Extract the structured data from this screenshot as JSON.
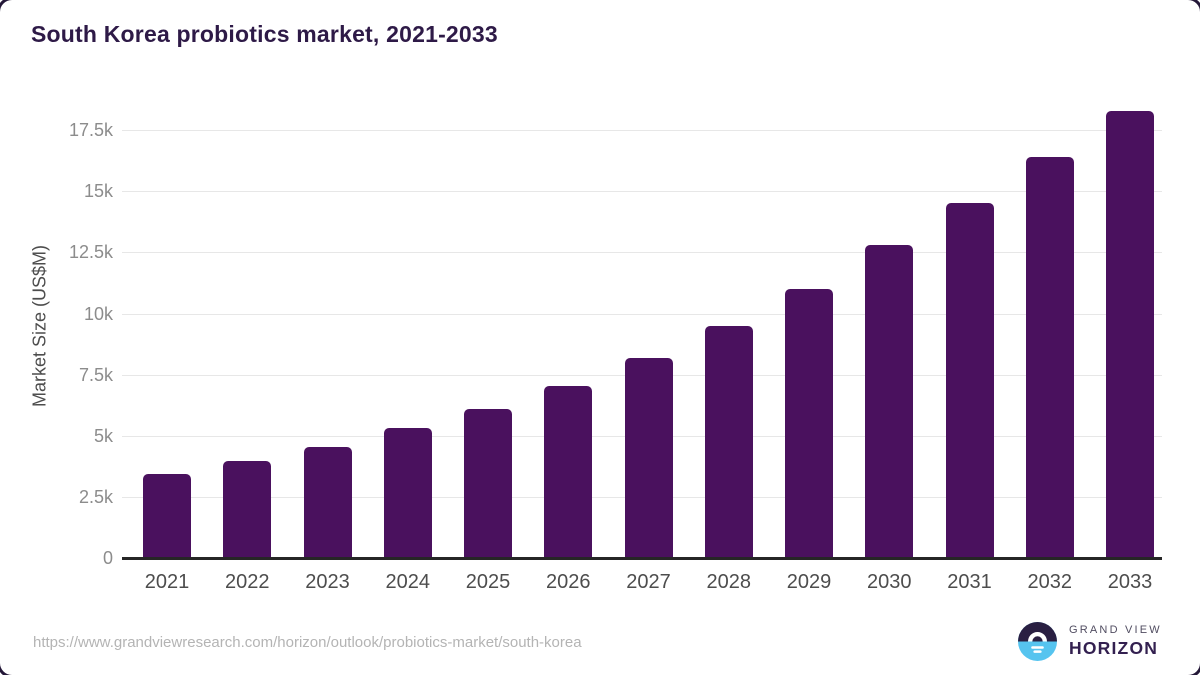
{
  "title": "South Korea probiotics market, 2021-2033",
  "chart_data": {
    "type": "bar",
    "title": "South Korea probiotics market, 2021-2033",
    "categories": [
      "2021",
      "2022",
      "2023",
      "2024",
      "2025",
      "2026",
      "2027",
      "2028",
      "2029",
      "2030",
      "2031",
      "2032",
      "2033"
    ],
    "values": [
      3450,
      3950,
      4550,
      5300,
      6100,
      7050,
      8200,
      9500,
      11000,
      12800,
      14500,
      16400,
      18300
    ],
    "xlabel": "",
    "ylabel": "Market Size (US$M)",
    "ylim": [
      0,
      18600
    ],
    "yticks": [
      {
        "value": 0,
        "label": "0"
      },
      {
        "value": 2500,
        "label": "2.5k"
      },
      {
        "value": 5000,
        "label": "5k"
      },
      {
        "value": 7500,
        "label": "7.5k"
      },
      {
        "value": 10000,
        "label": "10k"
      },
      {
        "value": 12500,
        "label": "12.5k"
      },
      {
        "value": 15000,
        "label": "15k"
      },
      {
        "value": 17500,
        "label": "17.5k"
      }
    ],
    "grid": true,
    "legend": "none",
    "bar_color": "#4a115e"
  },
  "colors": {
    "bar": "#4a115e",
    "title_text": "#2e1a47",
    "tick_text": "#8c8c8c",
    "category_text": "#4d4d4d",
    "gridline": "#e7e7e7",
    "axis_line": "#262626",
    "frame_corner": "#241838",
    "logo_top_half": "#2a1f42",
    "logo_bottom_half": "#56c4ef",
    "logo_sun": "#ffffff"
  },
  "footer": {
    "source_url": "https://www.grandviewresearch.com/horizon/outlook/probiotics-market/south-korea",
    "logo": {
      "line1": "GRAND VIEW",
      "line2": "HORIZON"
    }
  }
}
